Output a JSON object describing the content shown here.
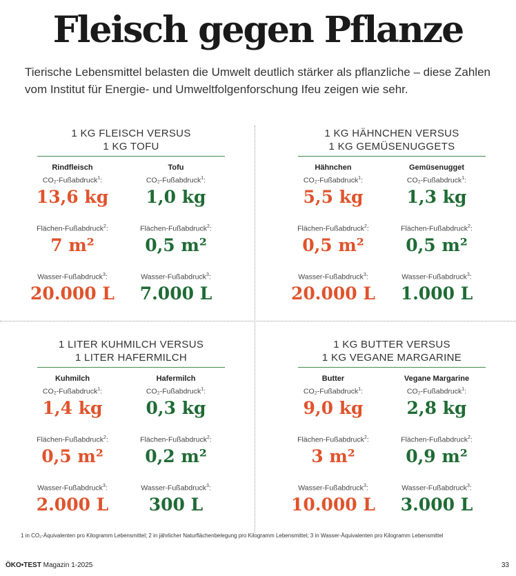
{
  "header": {
    "title": "Fleisch gegen Pflanze",
    "intro": "Tierische Lebensmittel belasten die Umwelt deutlich stärker als pflanzliche – diese Zahlen vom Institut für Energie- und Umweltfolgenforschung Ifeu zeigen wie sehr."
  },
  "labels": {
    "co2": "CO₂-Fußabdruck",
    "co2_sup": "1",
    "area": "Flächen-Fußabdruck",
    "area_sup": "2",
    "water": "Wasser-Fußabdruck",
    "water_sup": "3"
  },
  "panels": [
    {
      "title_line1": "1 KG FLEISCH VERSUS",
      "title_line2": "1 KG TOFU",
      "left": {
        "name": "Rindfleisch",
        "co2": "13,6 kg",
        "area": "7 m²",
        "water": "20.000 L"
      },
      "right": {
        "name": "Tofu",
        "co2": "1,0 kg",
        "area": "0,5 m²",
        "water": "7.000 L"
      }
    },
    {
      "title_line1": "1 KG HÄHNCHEN VERSUS",
      "title_line2": "1 KG GEMÜSENUGGETS",
      "left": {
        "name": "Hähnchen",
        "co2": "5,5 kg",
        "area": "0,5 m²",
        "water": "20.000 L"
      },
      "right": {
        "name": "Gemüsenugget",
        "co2": "1,3 kg",
        "area": "0,5 m²",
        "water": "1.000 L"
      }
    },
    {
      "title_line1": "1 LITER KUHMILCH VERSUS",
      "title_line2": "1 LITER HAFERMILCH",
      "left": {
        "name": "Kuhmilch",
        "co2": "1,4 kg",
        "area": "0,5 m²",
        "water": "2.000 L"
      },
      "right": {
        "name": "Hafermilch",
        "co2": "0,3 kg",
        "area": "0,2 m²",
        "water": "300 L"
      }
    },
    {
      "title_line1": "1 KG BUTTER VERSUS",
      "title_line2": "1 KG VEGANE MARGARINE",
      "left": {
        "name": "Butter",
        "co2": "9,0 kg",
        "area": "3 m²",
        "water": "10.000 L"
      },
      "right": {
        "name": "Vegane Margarine",
        "co2": "2,8 kg",
        "area": "0,9 m²",
        "water": "3.000 L"
      }
    }
  ],
  "footnote": "1 in CO₂-Äquivalenten pro Kilogramm Lebensmittel; 2 in jährlicher Naturflächenbelegung pro Kilogramm Lebensmittel; 3 in Wasser-Äquivalenten pro Kilogramm Lebensmittel",
  "footer": {
    "brand": "ÖKO•TEST",
    "issue": "Magazin 1-2025",
    "page": "33"
  },
  "colors": {
    "animal": "#e0532c",
    "plant": "#1f6b35",
    "rule": "#3f8a4a"
  }
}
